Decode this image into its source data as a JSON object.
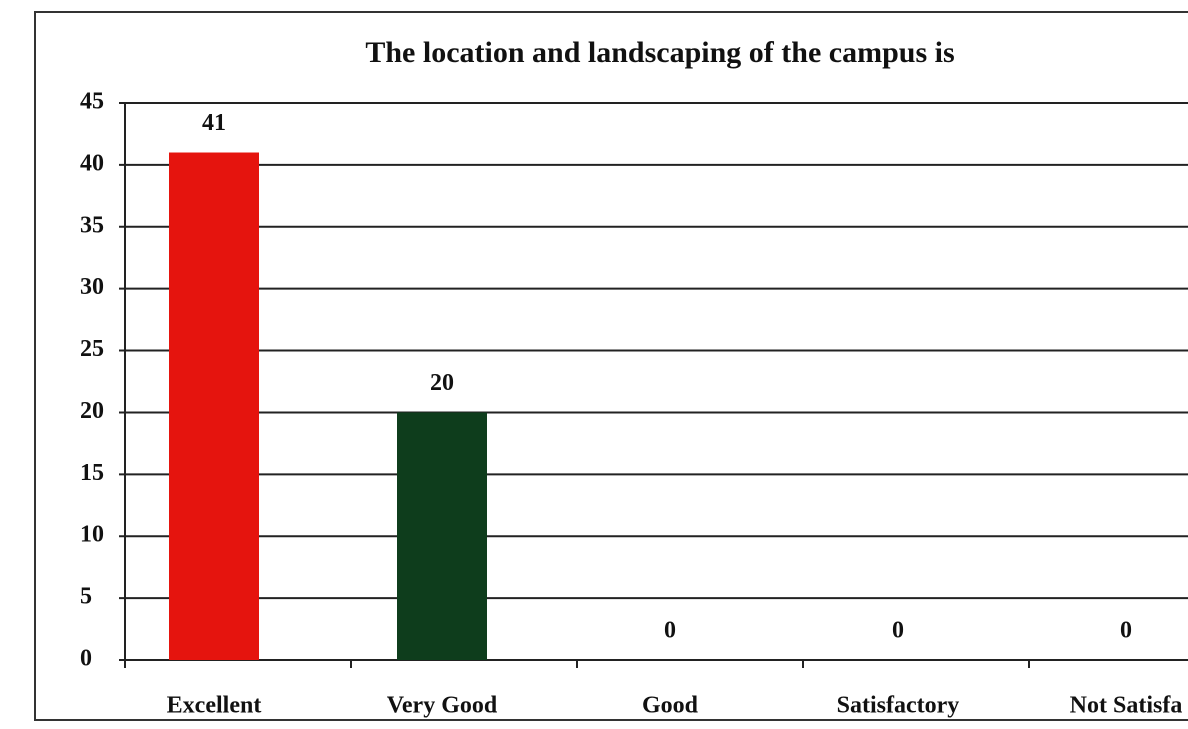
{
  "chart_data": {
    "type": "bar",
    "title": "The location and landscaping of the campus is",
    "categories": [
      "Excellent",
      "Very Good",
      "Good",
      "Satisfactory",
      "Not Satisfa"
    ],
    "values": [
      41,
      20,
      0,
      0,
      0
    ],
    "colors": [
      "#e5140e",
      "#0e3d1c",
      "#e5140e",
      "#e5140e",
      "#e5140e"
    ],
    "ylim": [
      0,
      45
    ],
    "yticks": [
      0,
      5,
      10,
      15,
      20,
      25,
      30,
      35,
      40,
      45
    ],
    "grid": true
  }
}
